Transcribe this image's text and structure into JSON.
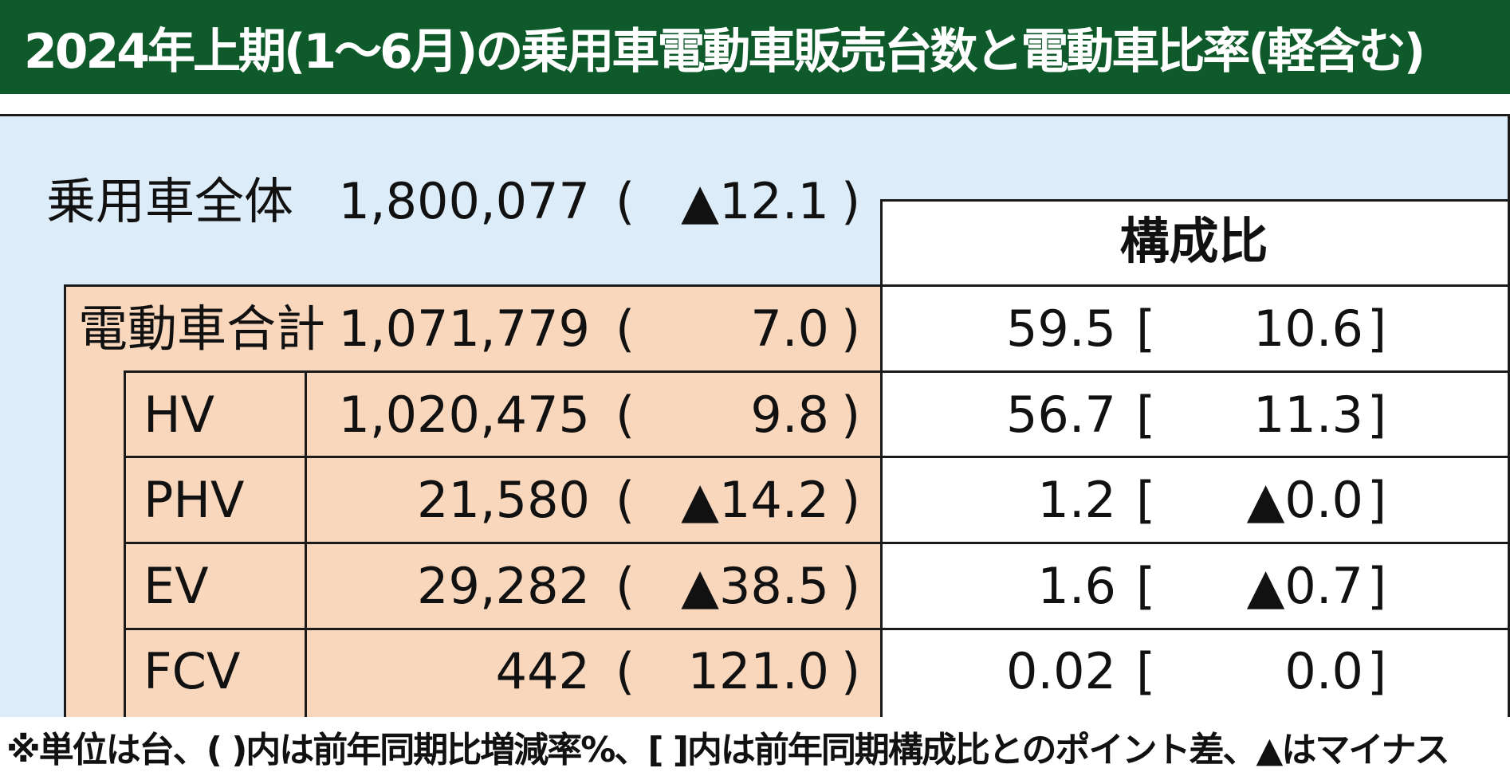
{
  "title": "2024年上期(1～6月)の乗用車電動車販売台数と電動車比率(軽含む)",
  "header": {
    "share_col": "構成比"
  },
  "colors": {
    "title_bg": "#0e5a2a",
    "panel_bg": "#dcecf8",
    "electric_bg": "#f9d7bc"
  },
  "chart_data": {
    "type": "table",
    "total": {
      "label": "乗用車全体",
      "units": "1,800,077",
      "yoy": "▲12.1"
    },
    "rows": [
      {
        "label": "電動車合計",
        "units": "1,071,779",
        "yoy": "7.0",
        "share": "59.5",
        "share_diff": "10.6"
      },
      {
        "label": "HV",
        "units": "1,020,475",
        "yoy": "9.8",
        "share": "56.7",
        "share_diff": "11.3"
      },
      {
        "label": "PHV",
        "units": "21,580",
        "yoy": "▲14.2",
        "share": "1.2",
        "share_diff": "▲0.0"
      },
      {
        "label": "EV",
        "units": "29,282",
        "yoy": "▲38.5",
        "share": "1.6",
        "share_diff": "▲0.7"
      },
      {
        "label": "FCV",
        "units": "442",
        "yoy": "121.0",
        "share": "0.02",
        "share_diff": "0.0"
      }
    ]
  },
  "footnote": "※単位は台、( )内は前年同期比増減率%、[ ]内は前年同期構成比とのポイント差、▲はマイナス"
}
